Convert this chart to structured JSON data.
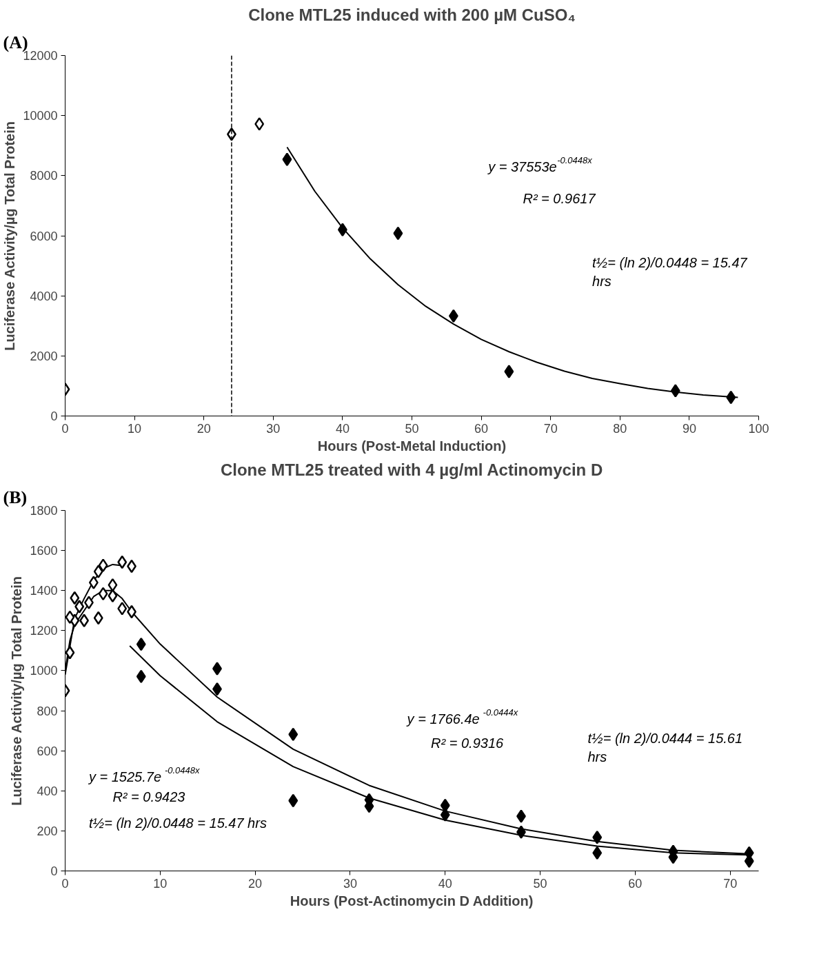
{
  "chart_data": [
    {
      "type": "scatter",
      "title": "Clone MTL25 induced with 200 µM CuSO₄",
      "xlabel": "Hours (Post-Metal Induction)",
      "ylabel": "Luciferase Activity/µg Total Protein",
      "xlim": [
        0,
        100
      ],
      "ylim": [
        0,
        12000
      ],
      "xticks": [
        0,
        10,
        20,
        30,
        40,
        50,
        60,
        70,
        80,
        90,
        100
      ],
      "yticks": [
        0,
        2000,
        4000,
        6000,
        8000,
        10000,
        12000
      ],
      "grid": false,
      "annotations": [
        "(A)",
        "y = 37553e$^{-0.0448x}$",
        "R² = 0.9617",
        "t½= (ln 2)/0.0448 = 15.47\nhrs"
      ],
      "ref_lines": [
        {
          "axis": "x",
          "value": 24,
          "color": "#000000",
          "line_style": "dashed"
        }
      ],
      "series": [
        {
          "marker": "diamond",
          "color": "#ffffff",
          "x": [
            0,
            24,
            28
          ],
          "values": [
            890,
            9380,
            9720
          ]
        },
        {
          "marker": "diamond",
          "color": "#000000",
          "x": [
            32,
            40,
            48,
            56,
            64,
            88,
            96
          ],
          "values": [
            8540,
            6200,
            6080,
            3330,
            1480,
            840,
            620
          ]
        },
        {
          "type": "line",
          "color": "#000000",
          "x": [
            32,
            36,
            40,
            44,
            48,
            52,
            56,
            60,
            64,
            68,
            72,
            76,
            80,
            84,
            88,
            92,
            97
          ],
          "values": [
            8950,
            7480,
            6260,
            5230,
            4370,
            3650,
            3060,
            2550,
            2140,
            1790,
            1490,
            1250,
            1080,
            920,
            800,
            700,
            620
          ]
        }
      ]
    },
    {
      "type": "scatter",
      "title": "Clone MTL25 treated with 4 µg/ml Actinomycin D",
      "xlabel": "Hours (Post-Actinomycin D Addition)",
      "ylabel": "Luciferase Activity/µg Total Protein",
      "xlim": [
        0,
        73
      ],
      "ylim": [
        0,
        1800
      ],
      "xticks": [
        0,
        10,
        20,
        30,
        40,
        50,
        60,
        70
      ],
      "yticks": [
        0,
        200,
        400,
        600,
        800,
        1000,
        1200,
        1400,
        1600,
        1800
      ],
      "grid": false,
      "annotations": [
        "(B)",
        "y = 1766.4e$^{-0.0444x}$",
        "R² = 0.9316",
        "t½= (ln 2)/0.0444 = 15.61\nhrs",
        "y = 1525.7e$^{-0.0448x}$",
        "R² = 0.9423",
        "t½= (ln 2)/0.0448 = 15.47 hrs"
      ],
      "series": [
        {
          "type": "line",
          "color": "#000000",
          "x": [
            0,
            0.5,
            1,
            2,
            3,
            4,
            5,
            6
          ],
          "values": [
            980,
            1120,
            1260,
            1360,
            1450,
            1510,
            1530,
            1525
          ]
        },
        {
          "type": "line",
          "color": "#000000",
          "x": [
            0,
            0.5,
            1,
            2,
            3,
            4,
            5,
            6,
            7
          ],
          "values": [
            1000,
            1150,
            1230,
            1300,
            1370,
            1400,
            1400,
            1360,
            1294
          ]
        },
        {
          "type": "line",
          "color": "#000000",
          "x": [
            7,
            10,
            16,
            24,
            32,
            40,
            48,
            56,
            64,
            72
          ],
          "values": [
            1294,
            1133,
            868,
            608,
            427,
            299,
            210,
            147,
            103,
            85
          ]
        },
        {
          "type": "line",
          "color": "#000000",
          "x": [
            6.8,
            10,
            16,
            24,
            32,
            40,
            48,
            56,
            64,
            72
          ],
          "values": [
            1124,
            975,
            745,
            521,
            364,
            254,
            178,
            124,
            90,
            80
          ]
        },
        {
          "marker": "diamond",
          "color": "#ffffff",
          "x": [
            0,
            0.5,
            1,
            1.5,
            2,
            2.5,
            3,
            3.5,
            4,
            6,
            7
          ],
          "values": [
            900,
            1090,
            1250,
            null,
            null,
            1340,
            1440,
            1495,
            1526,
            1542,
            1521
          ]
        },
        {
          "marker": "diamond",
          "color": "#ffffff",
          "x": [
            0.5,
            1,
            1.5,
            2,
            3.5,
            4,
            5,
            5,
            6,
            7
          ],
          "values": [
            1267,
            1363,
            1320,
            1250,
            1263,
            1384,
            1428,
            1374,
            1310,
            1294
          ]
        },
        {
          "marker": "diamond",
          "color": "#000000",
          "x": [
            8,
            16,
            24,
            32,
            40,
            48,
            56,
            64,
            72
          ],
          "values": [
            1132,
            1010,
            682,
            355,
            327,
            273,
            168,
            97,
            90
          ]
        },
        {
          "marker": "diamond",
          "color": "#000000",
          "x": [
            8,
            16,
            24,
            32,
            40,
            48,
            56,
            64,
            72
          ],
          "values": [
            971,
            908,
            351,
            323,
            280,
            194,
            90,
            69,
            49
          ]
        }
      ]
    }
  ]
}
